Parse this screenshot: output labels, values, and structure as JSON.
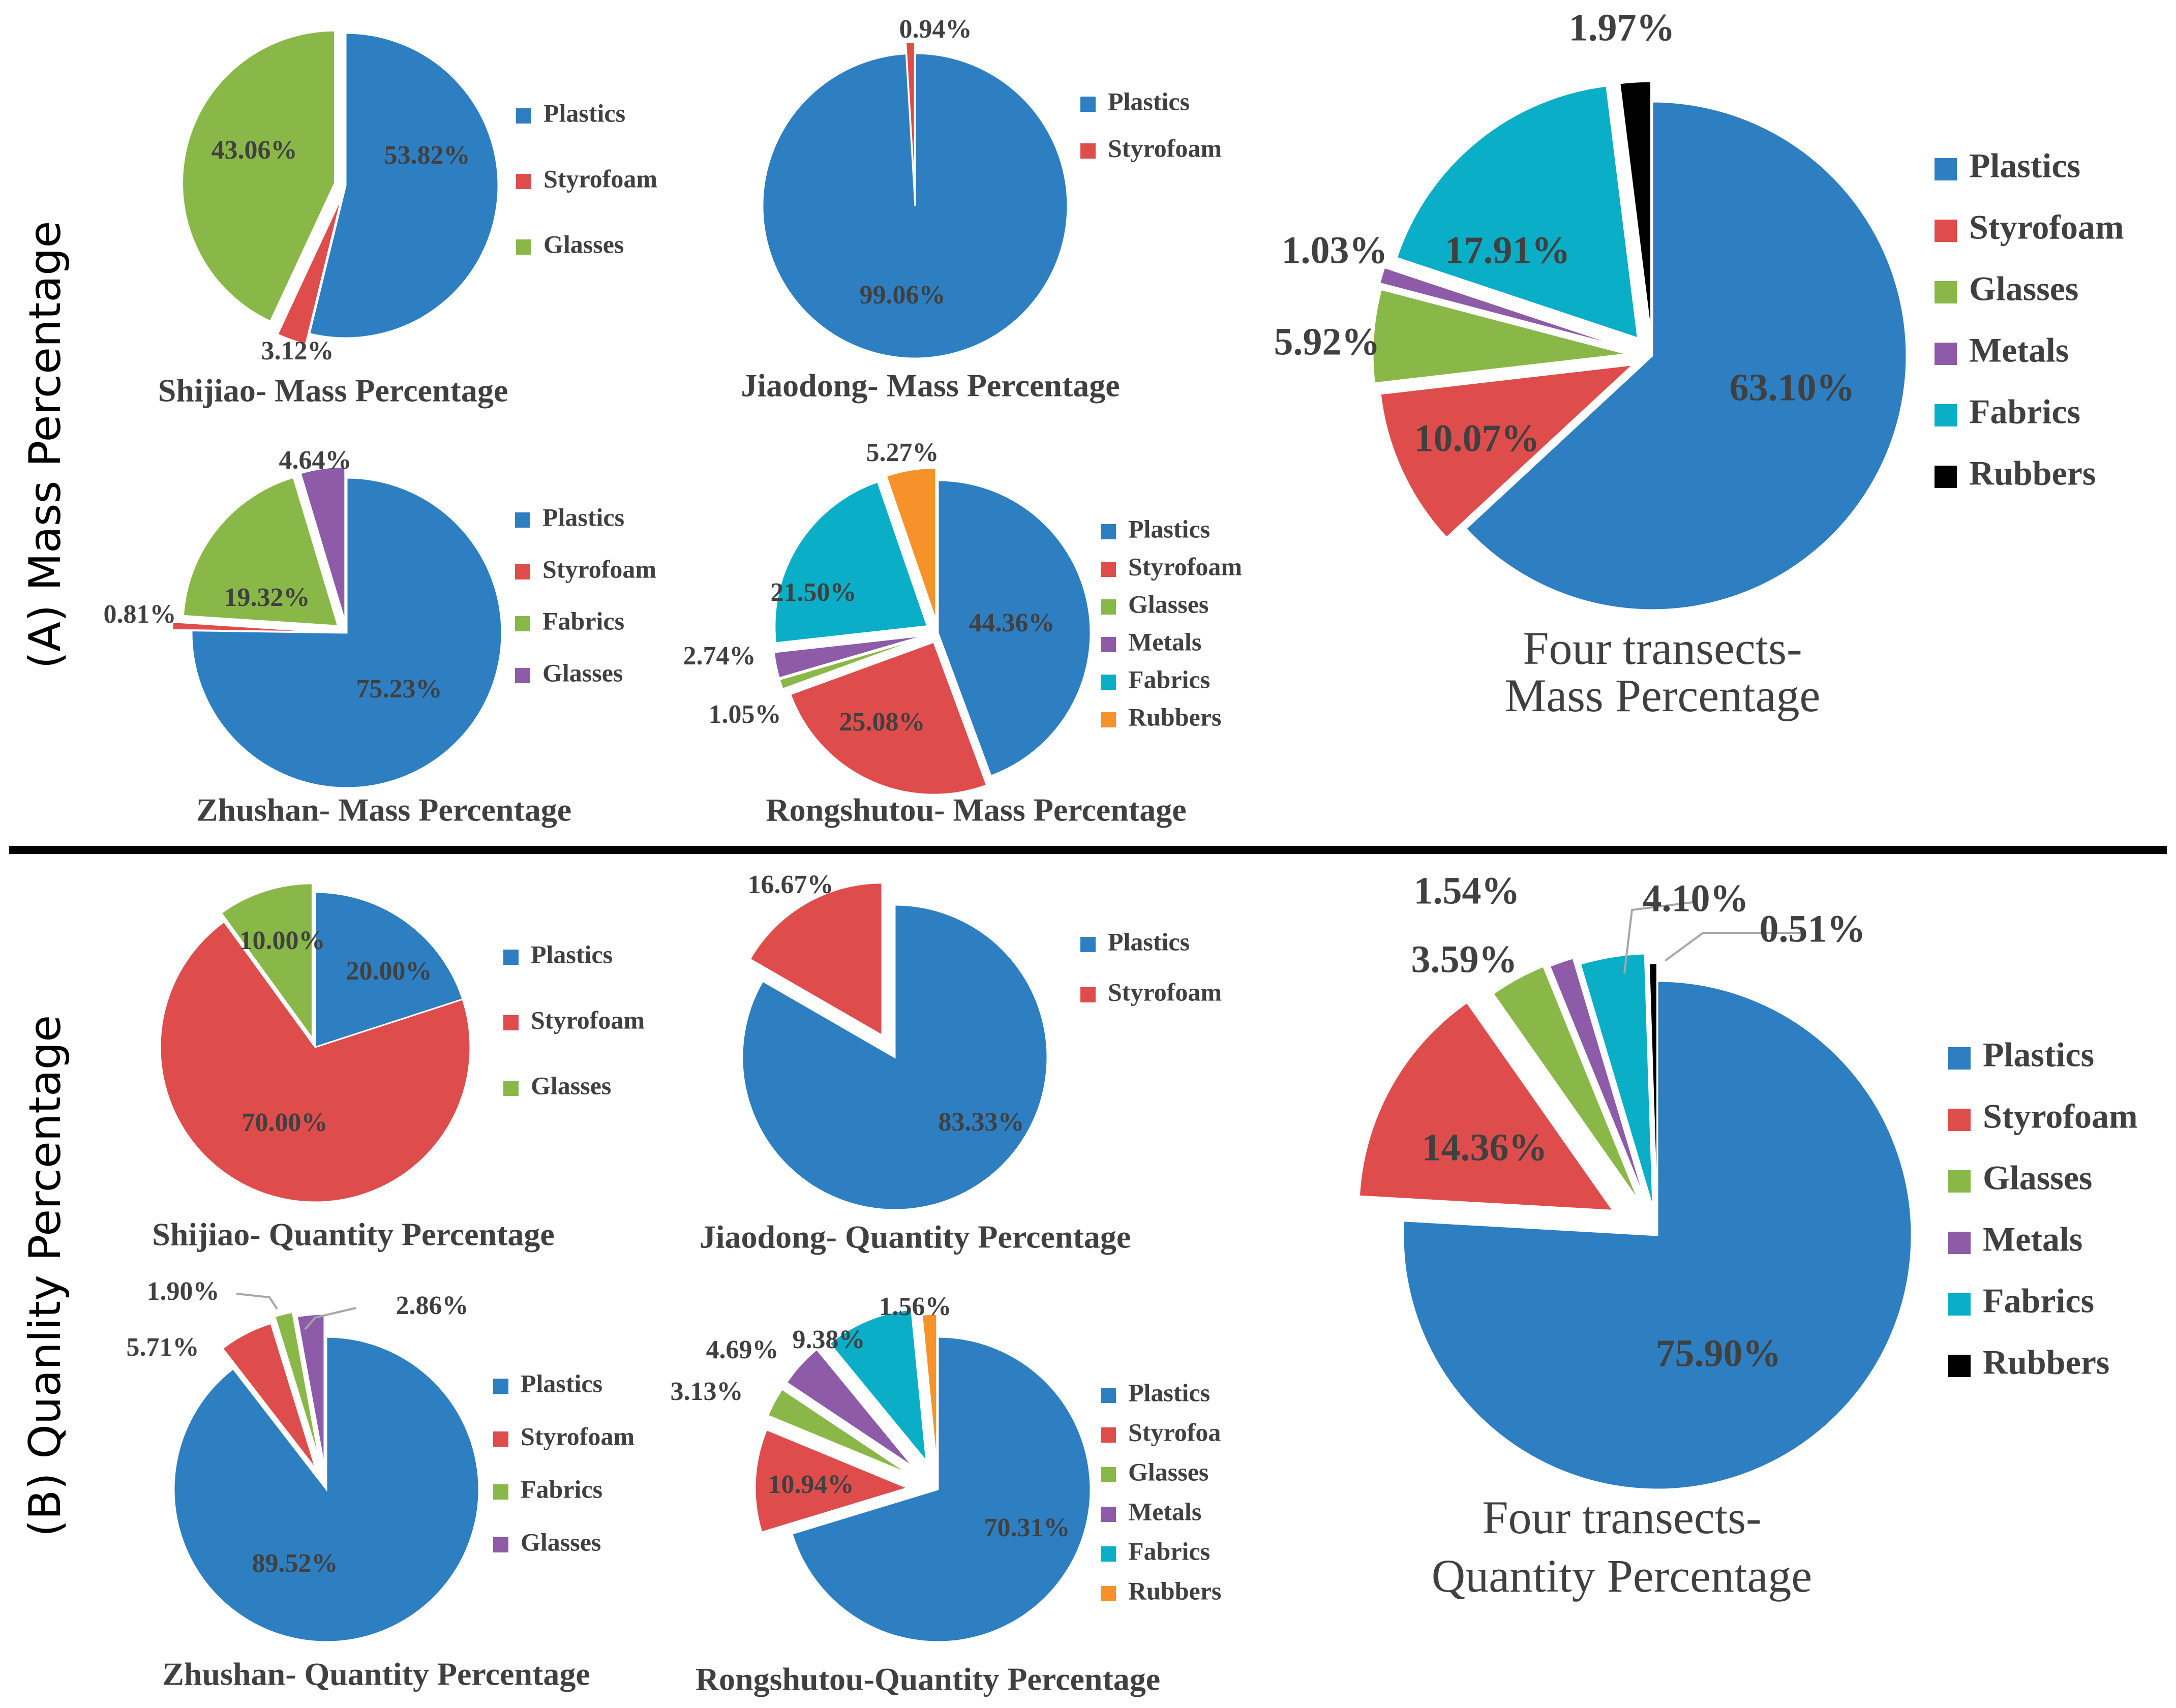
{
  "figure": {
    "panel_a_label": "(A)  Mass Percentage",
    "panel_b_label": "(B) Quanlity Percentage"
  },
  "colors": {
    "Plastics": "#2E7FC2",
    "Styrofoam": "#DE4D4C",
    "Glasses": "#89B848",
    "Metals": "#8D5BA7",
    "Fabrics": "#0AAEC7",
    "Rubbers": "#F7922A",
    "RubbersDark": "#000000"
  },
  "chart_data": [
    {
      "id": "shijiao-mass",
      "type": "pie",
      "title": "Shijiao- Mass Percentage",
      "categories": [
        "Plastics",
        "Styrofoam",
        "Glasses"
      ],
      "values": [
        53.82,
        3.12,
        43.06
      ],
      "labels": [
        "53.82%",
        "3.12%",
        "43.06%"
      ],
      "legend": [
        "Plastics",
        "Styrofoam",
        "Glasses"
      ],
      "colors": [
        "#2E7FC2",
        "#DE4D4C",
        "#89B848"
      ]
    },
    {
      "id": "jiaodong-mass",
      "type": "pie",
      "title": "Jiaodong- Mass Percentage",
      "categories": [
        "Plastics",
        "Styrofoam"
      ],
      "values": [
        99.06,
        0.94
      ],
      "labels": [
        "99.06%",
        "0.94%"
      ],
      "legend": [
        "Plastics",
        "Styrofoam"
      ],
      "colors": [
        "#2E7FC2",
        "#DE4D4C"
      ]
    },
    {
      "id": "zhushan-mass",
      "type": "pie",
      "title": "Zhushan- Mass Percentage",
      "categories": [
        "Plastics",
        "Styrofoam",
        "Fabrics",
        "Glasses"
      ],
      "values": [
        75.23,
        0.81,
        19.32,
        4.64
      ],
      "labels": [
        "75.23%",
        "0.81%",
        "19.32%",
        "4.64%"
      ],
      "legend": [
        "Plastics",
        "Styrofoam",
        "Fabrics",
        "Glasses"
      ],
      "colors": [
        "#2E7FC2",
        "#DE4D4C",
        "#89B848",
        "#8D5BA7"
      ]
    },
    {
      "id": "rongshutou-mass",
      "type": "pie",
      "title": "Rongshutou- Mass Percentage",
      "categories": [
        "Plastics",
        "Styrofoam",
        "Glasses",
        "Metals",
        "Fabrics",
        "Rubbers"
      ],
      "values": [
        44.36,
        25.08,
        1.05,
        2.74,
        21.5,
        5.27
      ],
      "labels": [
        "44.36%",
        "25.08%",
        "1.05%",
        "2.74%",
        "21.50%",
        "5.27%"
      ],
      "legend": [
        "Plastics",
        "Styrofoam",
        "Glasses",
        "Metals",
        "Fabrics",
        "Rubbers"
      ],
      "colors": [
        "#2E7FC2",
        "#DE4D4C",
        "#89B848",
        "#8D5BA7",
        "#0AAEC7",
        "#F7922A"
      ]
    },
    {
      "id": "four-mass",
      "type": "pie",
      "title": "Four transects-\nMass Percentage",
      "categories": [
        "Plastics",
        "Styrofoam",
        "Glasses",
        "Metals",
        "Fabrics",
        "Rubbers"
      ],
      "values": [
        63.1,
        10.07,
        5.92,
        1.03,
        17.91,
        1.97
      ],
      "labels": [
        "63.10%",
        "10.07%",
        "5.92%",
        "1.03%",
        "17.91%",
        "1.97%"
      ],
      "legend": [
        "Plastics",
        "Styrofoam",
        "Glasses",
        "Metals",
        "Fabrics",
        "Rubbers"
      ],
      "colors": [
        "#2E7FC2",
        "#DE4D4C",
        "#89B848",
        "#8D5BA7",
        "#0AAEC7",
        "#000000"
      ]
    },
    {
      "id": "shijiao-quantity",
      "type": "pie",
      "title": "Shijiao- Quantity Percentage",
      "categories": [
        "Plastics",
        "Styrofoam",
        "Glasses"
      ],
      "values": [
        20.0,
        70.0,
        10.0
      ],
      "labels": [
        "20.00%",
        "70.00%",
        "10.00%"
      ],
      "legend": [
        "Plastics",
        "Styrofoam",
        "Glasses"
      ],
      "colors": [
        "#2E7FC2",
        "#DE4D4C",
        "#89B848"
      ]
    },
    {
      "id": "jiaodong-quantity",
      "type": "pie",
      "title": "Jiaodong- Quantity Percentage",
      "categories": [
        "Plastics",
        "Styrofoam"
      ],
      "values": [
        83.33,
        16.67
      ],
      "labels": [
        "83.33%",
        "16.67%"
      ],
      "legend": [
        "Plastics",
        "Styrofoam"
      ],
      "colors": [
        "#2E7FC2",
        "#DE4D4C"
      ]
    },
    {
      "id": "zhushan-quantity",
      "type": "pie",
      "title": "Zhushan- Quantity Percentage",
      "categories": [
        "Plastics",
        "Styrofoam",
        "Fabrics",
        "Glasses"
      ],
      "values": [
        89.52,
        5.71,
        1.9,
        2.86
      ],
      "labels": [
        "89.52%",
        "5.71%",
        "1.90%",
        "2.86%"
      ],
      "legend": [
        "Plastics",
        "Styrofoam",
        "Fabrics",
        "Glasses"
      ],
      "colors": [
        "#2E7FC2",
        "#DE4D4C",
        "#89B848",
        "#8D5BA7"
      ]
    },
    {
      "id": "rongshutou-quantity",
      "type": "pie",
      "title": "Rongshutou-Quantity Percentage",
      "categories": [
        "Plastics",
        "Styrofoam",
        "Glasses",
        "Metals",
        "Fabrics",
        "Rubbers"
      ],
      "values": [
        70.31,
        10.94,
        3.13,
        4.69,
        9.38,
        1.56
      ],
      "labels": [
        "70.31%",
        "10.94%",
        "3.13%",
        "4.69%",
        "9.38%",
        "1.56%"
      ],
      "legend": [
        "Plastics",
        "Styrofoa",
        "Glasses",
        "Metals",
        "Fabrics",
        "Rubbers"
      ],
      "colors": [
        "#2E7FC2",
        "#DE4D4C",
        "#89B848",
        "#8D5BA7",
        "#0AAEC7",
        "#F7922A"
      ]
    },
    {
      "id": "four-quantity",
      "type": "pie",
      "title": "Four transects-\nQuantity Percentage",
      "categories": [
        "Plastics",
        "Styrofoam",
        "Glasses",
        "Metals",
        "Fabrics",
        "Rubbers"
      ],
      "values": [
        75.9,
        14.36,
        3.59,
        1.54,
        4.1,
        0.51
      ],
      "labels": [
        "75.90%",
        "14.36%",
        "3.59%",
        "1.54%",
        "4.10%",
        "0.51%"
      ],
      "legend": [
        "Plastics",
        "Styrofoam",
        "Glasses",
        "Metals",
        "Fabrics",
        "Rubbers"
      ],
      "colors": [
        "#2E7FC2",
        "#DE4D4C",
        "#89B848",
        "#8D5BA7",
        "#0AAEC7",
        "#000000"
      ]
    }
  ]
}
